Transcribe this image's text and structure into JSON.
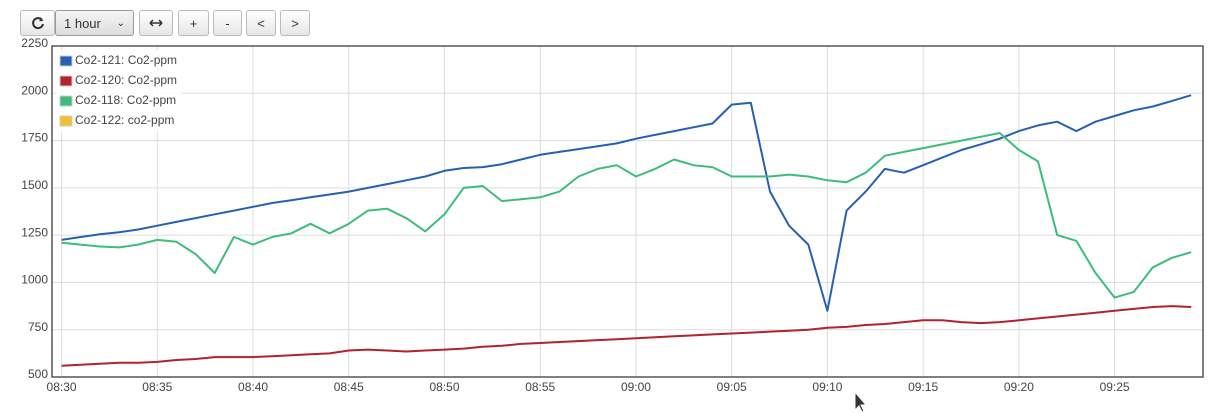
{
  "toolbar": {
    "range_select": "1 hour",
    "buttons": [
      "+",
      "-",
      "<",
      ">"
    ]
  },
  "chart_data": {
    "type": "line",
    "x": [
      "08:30",
      "08:31",
      "08:32",
      "08:33",
      "08:34",
      "08:35",
      "08:36",
      "08:37",
      "08:38",
      "08:39",
      "08:40",
      "08:41",
      "08:42",
      "08:43",
      "08:44",
      "08:45",
      "08:46",
      "08:47",
      "08:48",
      "08:49",
      "08:50",
      "08:51",
      "08:52",
      "08:53",
      "08:54",
      "08:55",
      "08:56",
      "08:57",
      "08:58",
      "08:59",
      "09:00",
      "09:01",
      "09:02",
      "09:03",
      "09:04",
      "09:05",
      "09:06",
      "09:07",
      "09:08",
      "09:09",
      "09:10",
      "09:11",
      "09:12",
      "09:13",
      "09:14",
      "09:15",
      "09:16",
      "09:17",
      "09:18",
      "09:19",
      "09:20",
      "09:21",
      "09:22",
      "09:23",
      "09:24",
      "09:25",
      "09:26",
      "09:27",
      "09:28",
      "09:29"
    ],
    "series": [
      {
        "name": "Co2-121: Co2-ppm",
        "color": "#2660b2",
        "values": [
          1225,
          1240,
          1255,
          1265,
          1280,
          1300,
          1320,
          1340,
          1360,
          1380,
          1400,
          1420,
          1435,
          1450,
          1465,
          1480,
          1500,
          1520,
          1540,
          1560,
          1590,
          1605,
          1610,
          1625,
          1650,
          1675,
          1690,
          1705,
          1720,
          1735,
          1760,
          1780,
          1800,
          1820,
          1840,
          1940,
          1950,
          1480,
          1300,
          1200,
          850,
          1380,
          1480,
          1600,
          1580,
          1620,
          1660,
          1700,
          1730,
          1760,
          1800,
          1830,
          1850,
          1800,
          1850,
          1880,
          1910,
          1930,
          1960,
          1990
        ]
      },
      {
        "name": "Co2-120: Co2-ppm",
        "color": "#b0232f",
        "values": [
          560,
          565,
          570,
          575,
          575,
          580,
          590,
          595,
          605,
          605,
          605,
          610,
          615,
          620,
          625,
          640,
          645,
          640,
          635,
          640,
          645,
          650,
          660,
          665,
          675,
          680,
          685,
          690,
          695,
          700,
          705,
          710,
          715,
          720,
          725,
          730,
          735,
          740,
          745,
          750,
          760,
          765,
          775,
          780,
          790,
          800,
          800,
          790,
          785,
          790,
          800,
          810,
          820,
          830,
          840,
          850,
          860,
          870,
          875,
          870
        ]
      },
      {
        "name": "Co2-118: Co2-ppm",
        "color": "#3dbc7c",
        "values": [
          1210,
          1200,
          1190,
          1185,
          1200,
          1225,
          1215,
          1150,
          1050,
          1240,
          1200,
          1240,
          1260,
          1310,
          1260,
          1310,
          1380,
          1390,
          1340,
          1270,
          1360,
          1500,
          1510,
          1430,
          1440,
          1450,
          1480,
          1560,
          1600,
          1620,
          1560,
          1600,
          1650,
          1620,
          1610,
          1560,
          1560,
          1560,
          1570,
          1560,
          1540,
          1530,
          1580,
          1670,
          1690,
          1710,
          1730,
          1750,
          1770,
          1790,
          1700,
          1640,
          1250,
          1220,
          1050,
          920,
          950,
          1080,
          1130,
          1160
        ]
      },
      {
        "name": "Co2-122: co2-ppm",
        "color": "#f0c030",
        "values": [
          null,
          null,
          null,
          null,
          null,
          null,
          null,
          null,
          null,
          null,
          null,
          null,
          null,
          null,
          null,
          null,
          null,
          null,
          null,
          null,
          null,
          null,
          null,
          null,
          null,
          null,
          null,
          null,
          null,
          null,
          null,
          null,
          null,
          null,
          null,
          null,
          null,
          null,
          null,
          null,
          null,
          null,
          null,
          null,
          null,
          null,
          null,
          null,
          null,
          null,
          null,
          null,
          null,
          null,
          null,
          null,
          null,
          null,
          null,
          null
        ]
      }
    ],
    "xlim": [
      "08:29:30",
      "09:29:37"
    ],
    "xticks": [
      "08:30",
      "08:35",
      "08:40",
      "08:45",
      "08:50",
      "08:55",
      "09:00",
      "09:05",
      "09:10",
      "09:15",
      "09:20",
      "09:25"
    ],
    "ylim": [
      500,
      2250
    ],
    "yticks": [
      500,
      750,
      1000,
      1250,
      1500,
      1750,
      2000,
      2250
    ],
    "grid": true,
    "legend": "top-left"
  }
}
